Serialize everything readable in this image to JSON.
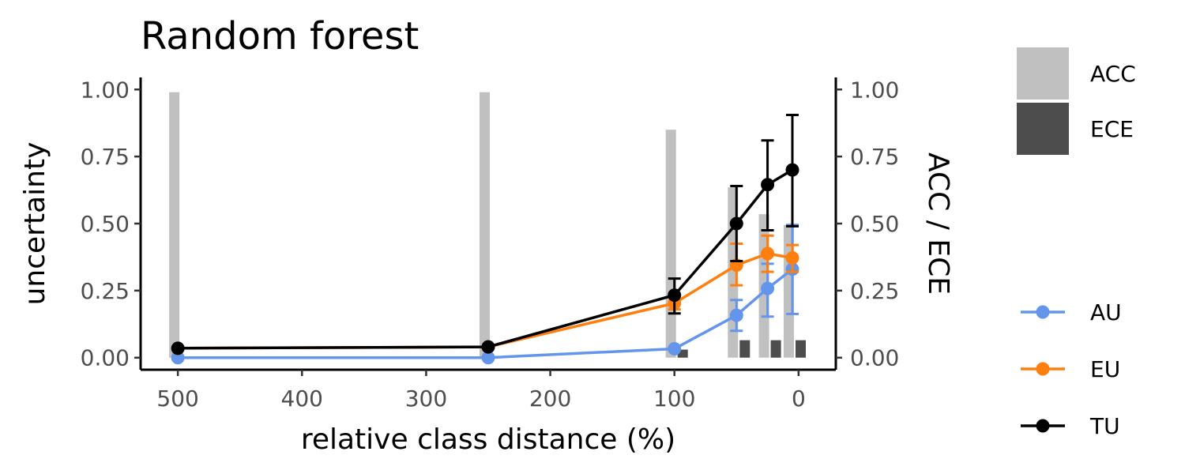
{
  "chart_data": {
    "type": "line",
    "title": "Random forest",
    "xlabel": "relative class distance (%)",
    "ylabel": "uncertainty",
    "ylabel_right": "ACC / ECE",
    "x_reversed": true,
    "xlim": [
      530,
      -30
    ],
    "ylim": [
      -0.045,
      1.045
    ],
    "x_ticks": [
      500,
      400,
      300,
      200,
      100,
      0
    ],
    "x_tick_labels": [
      "500",
      "400",
      "300",
      "200",
      "100",
      "0"
    ],
    "y_ticks": [
      0,
      0.25,
      0.5,
      0.75,
      1
    ],
    "y_tick_labels": [
      "0.00",
      "0.25",
      "0.50",
      "0.75",
      "1.00"
    ],
    "grid": false,
    "legend_position": "right",
    "bars": {
      "x": [
        500,
        250,
        100,
        50,
        25,
        5
      ],
      "series": [
        {
          "name": "ACC",
          "color": "#c0c0c0",
          "values": [
            0.99,
            0.99,
            0.85,
            0.635,
            0.535,
            0.495
          ]
        },
        {
          "name": "ECE",
          "color": "#4d4d4d",
          "values": [
            0.0,
            0.0,
            0.03,
            0.065,
            0.065,
            0.065
          ]
        }
      ]
    },
    "series": [
      {
        "name": "AU",
        "color": "#6495ED",
        "x": [
          500,
          250,
          100,
          50,
          25,
          5
        ],
        "y": [
          0.0,
          0.0,
          0.033,
          0.158,
          0.258,
          0.33
        ],
        "err_low": [
          0.0,
          0.0,
          0.0,
          0.1,
          0.153,
          0.163
        ],
        "err_high": [
          0.0,
          0.0,
          0.0,
          0.215,
          0.35,
          0.495
        ]
      },
      {
        "name": "EU",
        "color": "#FF7F0E",
        "x": [
          500,
          250,
          100,
          50,
          25,
          5
        ],
        "y": [
          0.035,
          0.04,
          0.203,
          0.345,
          0.388,
          0.372
        ],
        "err_low": [
          0.0,
          0.0,
          0.18,
          0.27,
          0.32,
          0.32
        ],
        "err_high": [
          0.0,
          0.0,
          0.235,
          0.425,
          0.455,
          0.42
        ]
      },
      {
        "name": "TU",
        "color": "#000000",
        "x": [
          500,
          250,
          100,
          50,
          25,
          5
        ],
        "y": [
          0.035,
          0.04,
          0.233,
          0.5,
          0.645,
          0.7
        ],
        "err_low": [
          0.0,
          0.0,
          0.165,
          0.36,
          0.475,
          0.49
        ],
        "err_high": [
          0.0,
          0.0,
          0.295,
          0.64,
          0.81,
          0.905
        ]
      }
    ]
  }
}
